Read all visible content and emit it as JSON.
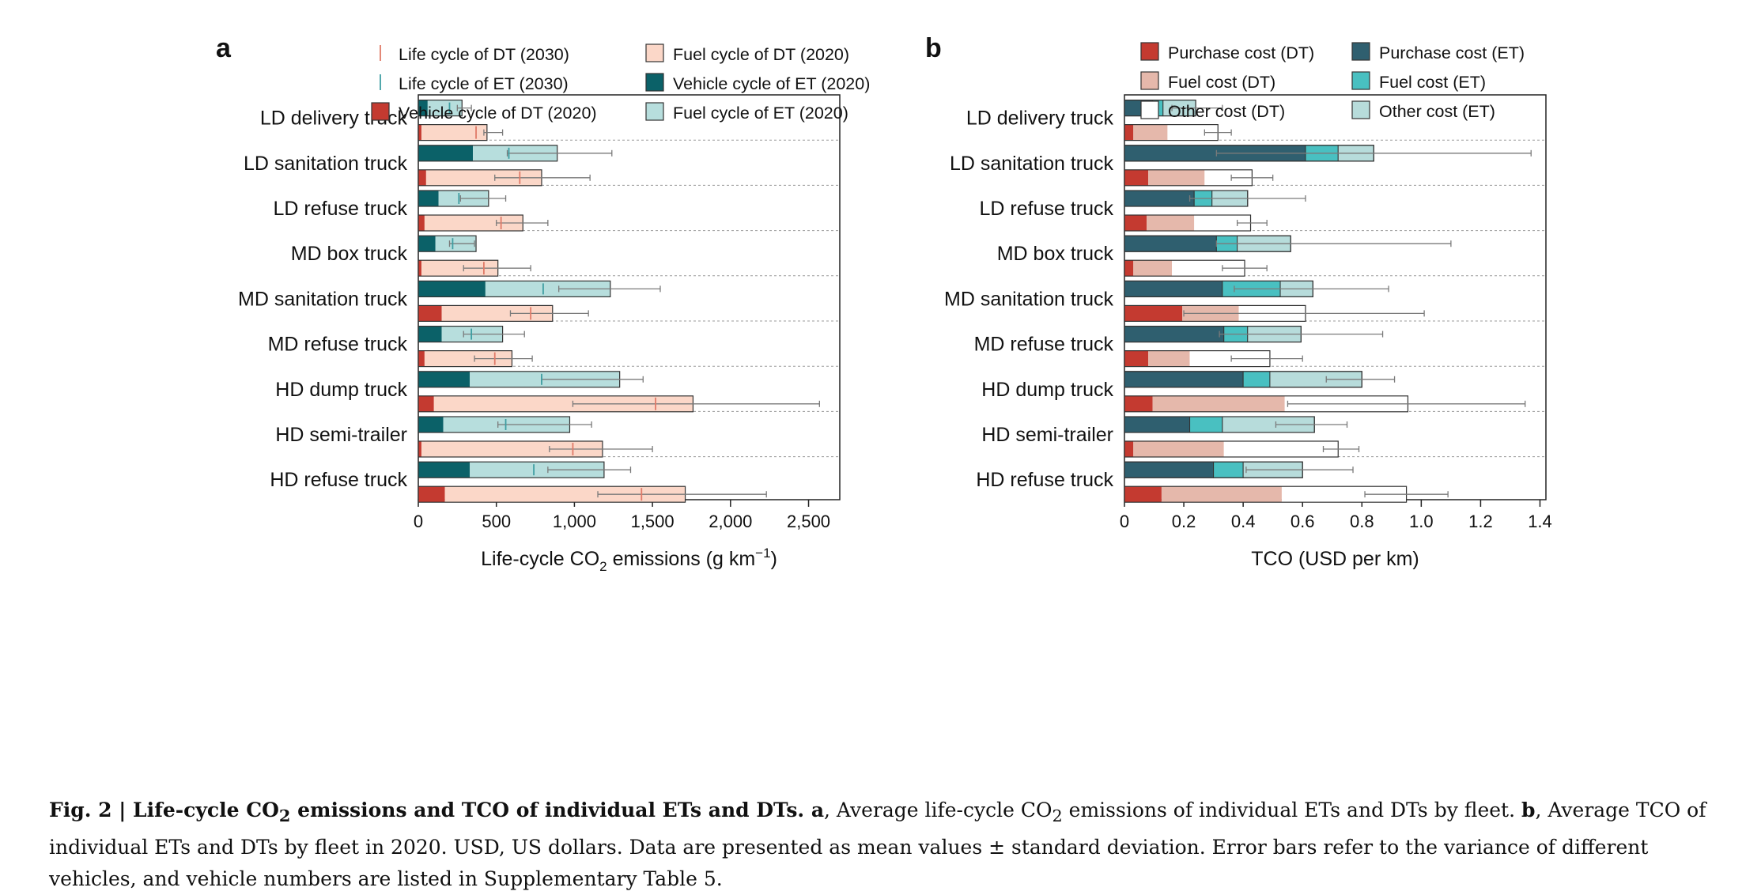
{
  "panels": {
    "a": {
      "letter": "a"
    },
    "b": {
      "letter": "b"
    }
  },
  "colors": {
    "dt_vehicle": "#c43a30",
    "dt_fuel": "#fbd7c8",
    "et_vehicle": "#0b6168",
    "et_fuel": "#b7dedd",
    "tco_dt_purchase": "#c43a30",
    "tco_dt_fuel": "#e5b8ab",
    "tco_dt_other": "#ffffff",
    "tco_et_purchase": "#2f5f6f",
    "tco_et_fuel": "#49c0c1",
    "tco_et_other": "#b7dcdb",
    "lc_dt_2030": "#e07a68",
    "lc_et_2030": "#3f9ea2",
    "errorbar": "#7a7a7a",
    "separator": "#9a9a9a"
  },
  "chart_data": [
    {
      "type": "bar",
      "panel": "a",
      "orientation": "horizontal",
      "stacked": true,
      "xlabel_main": "Life-cycle CO",
      "xlabel_sub": "2",
      "xlabel_rest": " emissions (g km",
      "xlabel_sup": "−1",
      "xlabel_close": ")",
      "xlim": [
        0,
        2700
      ],
      "xticks": [
        0,
        500,
        1000,
        1500,
        2000,
        2500
      ],
      "xtick_labels": [
        "0",
        "500",
        "1,000",
        "1,500",
        "2,000",
        "2,500"
      ],
      "legend": [
        {
          "label": "Life cycle of DT (2030)",
          "kind": "tick",
          "color": "lc_dt_2030"
        },
        {
          "label": "Fuel cycle of DT (2020)",
          "kind": "box",
          "color": "dt_fuel"
        },
        {
          "label": "Life cycle of ET (2030)",
          "kind": "tick",
          "color": "lc_et_2030"
        },
        {
          "label": "Vehicle cycle of ET (2020)",
          "kind": "box",
          "color": "et_vehicle"
        },
        {
          "label": "Vehicle cycle of DT (2020)",
          "kind": "box",
          "color": "dt_vehicle"
        },
        {
          "label": "Fuel cycle of ET (2020)",
          "kind": "box",
          "color": "et_fuel"
        }
      ],
      "categories": [
        "LD delivery truck",
        "LD sanitation truck",
        "LD refuse truck",
        "MD box truck",
        "MD sanitation truck",
        "MD refuse truck",
        "HD dump truck",
        "HD semi-trailer",
        "HD refuse truck"
      ],
      "series": [
        {
          "name": "Vehicle cycle of ET (2020)",
          "group": "ET",
          "values": [
            60,
            350,
            130,
            110,
            430,
            150,
            330,
            160,
            330
          ]
        },
        {
          "name": "Fuel cycle of ET (2020)",
          "group": "ET",
          "values": [
            220,
            540,
            320,
            260,
            800,
            390,
            960,
            810,
            860
          ]
        },
        {
          "name": "Vehicle cycle of DT (2020)",
          "group": "DT",
          "values": [
            20,
            50,
            40,
            20,
            150,
            40,
            100,
            20,
            170
          ]
        },
        {
          "name": "Fuel cycle of DT (2020)",
          "group": "DT",
          "values": [
            420,
            740,
            630,
            490,
            710,
            560,
            1660,
            1160,
            1540
          ]
        }
      ],
      "et_error": [
        [
          250,
          340
        ],
        [
          570,
          1240
        ],
        [
          270,
          560
        ],
        [
          200,
          360
        ],
        [
          900,
          1550
        ],
        [
          290,
          680
        ],
        [
          790,
          1440
        ],
        [
          510,
          1110
        ],
        [
          830,
          1360
        ]
      ],
      "dt_error": [
        [
          420,
          540
        ],
        [
          490,
          1100
        ],
        [
          500,
          830
        ],
        [
          290,
          720
        ],
        [
          590,
          1090
        ],
        [
          360,
          730
        ],
        [
          990,
          2570
        ],
        [
          840,
          1500
        ],
        [
          1150,
          2230
        ]
      ],
      "et_2030": [
        200,
        580,
        260,
        220,
        800,
        340,
        790,
        560,
        740
      ],
      "dt_2030": [
        370,
        650,
        530,
        420,
        720,
        490,
        1520,
        990,
        1430
      ]
    },
    {
      "type": "bar",
      "panel": "b",
      "orientation": "horizontal",
      "stacked": true,
      "xlabel": "TCO (USD per km)",
      "xlim": [
        0,
        1.42
      ],
      "xticks": [
        0,
        0.2,
        0.4,
        0.6,
        0.8,
        1.0,
        1.2,
        1.4
      ],
      "xtick_labels": [
        "0",
        "0.2",
        "0.4",
        "0.6",
        "0.8",
        "1.0",
        "1.2",
        "1.4"
      ],
      "legend": [
        {
          "label": "Purchase cost (DT)",
          "color": "tco_dt_purchase"
        },
        {
          "label": "Purchase cost (ET)",
          "color": "tco_et_purchase"
        },
        {
          "label": "Fuel cost (DT)",
          "color": "tco_dt_fuel"
        },
        {
          "label": "Fuel cost (ET)",
          "color": "tco_et_fuel"
        },
        {
          "label": "Other cost (DT)",
          "color": "tco_dt_other"
        },
        {
          "label": "Other cost (ET)",
          "color": "tco_et_other"
        }
      ],
      "categories": [
        "LD delivery truck",
        "LD sanitation truck",
        "LD refuse truck",
        "MD box truck",
        "MD sanitation truck",
        "MD refuse truck",
        "HD dump truck",
        "HD semi-trailer",
        "HD refuse truck"
      ],
      "series": [
        {
          "name": "Purchase cost (ET)",
          "group": "ET",
          "values": [
            0.095,
            0.61,
            0.235,
            0.31,
            0.33,
            0.335,
            0.4,
            0.22,
            0.3
          ]
        },
        {
          "name": "Fuel cost (ET)",
          "group": "ET",
          "values": [
            0.035,
            0.11,
            0.06,
            0.07,
            0.195,
            0.08,
            0.09,
            0.11,
            0.1
          ]
        },
        {
          "name": "Other cost (ET)",
          "group": "ET",
          "values": [
            0.11,
            0.12,
            0.12,
            0.18,
            0.11,
            0.18,
            0.31,
            0.31,
            0.2
          ]
        },
        {
          "name": "Purchase cost (DT)",
          "group": "DT",
          "values": [
            0.03,
            0.08,
            0.075,
            0.03,
            0.195,
            0.08,
            0.095,
            0.03,
            0.125
          ]
        },
        {
          "name": "Fuel cost (DT)",
          "group": "DT",
          "values": [
            0.115,
            0.19,
            0.16,
            0.13,
            0.19,
            0.14,
            0.445,
            0.305,
            0.405
          ]
        },
        {
          "name": "Other cost (DT)",
          "group": "DT",
          "values": [
            0.17,
            0.16,
            0.19,
            0.245,
            0.225,
            0.27,
            0.415,
            0.385,
            0.42
          ]
        }
      ],
      "et_error": [
        [
          0.16,
          0.33
        ],
        [
          0.31,
          1.37
        ],
        [
          0.22,
          0.61
        ],
        [
          0.31,
          1.1
        ],
        [
          0.37,
          0.89
        ],
        [
          0.32,
          0.87
        ],
        [
          0.68,
          0.91
        ],
        [
          0.51,
          0.75
        ],
        [
          0.41,
          0.77
        ]
      ],
      "dt_error": [
        [
          0.27,
          0.36
        ],
        [
          0.36,
          0.5
        ],
        [
          0.38,
          0.48
        ],
        [
          0.33,
          0.48
        ],
        [
          0.2,
          1.01
        ],
        [
          0.36,
          0.6
        ],
        [
          0.55,
          1.35
        ],
        [
          0.67,
          0.79
        ],
        [
          0.81,
          1.09
        ]
      ]
    }
  ],
  "caption": {
    "fig_label": "Fig. 2 | ",
    "title_bold": "Life-cycle CO",
    "title_bold_sub": "2",
    "title_bold_rest": " emissions and TCO of individual ETs and DTs. ",
    "a_label": "a",
    "a_text": ", Average life-cycle CO",
    "a_sub": "2",
    "a_text_rest": " emissions of individual ETs and DTs by fleet. ",
    "b_label": "b",
    "b_text": ", Average TCO of individual ETs and DTs by fleet in 2020. USD, US dollars. Data are presented as mean values ± standard deviation. Error bars refer to the variance of different vehicles, and vehicle numbers are listed in Supplementary Table 5."
  }
}
